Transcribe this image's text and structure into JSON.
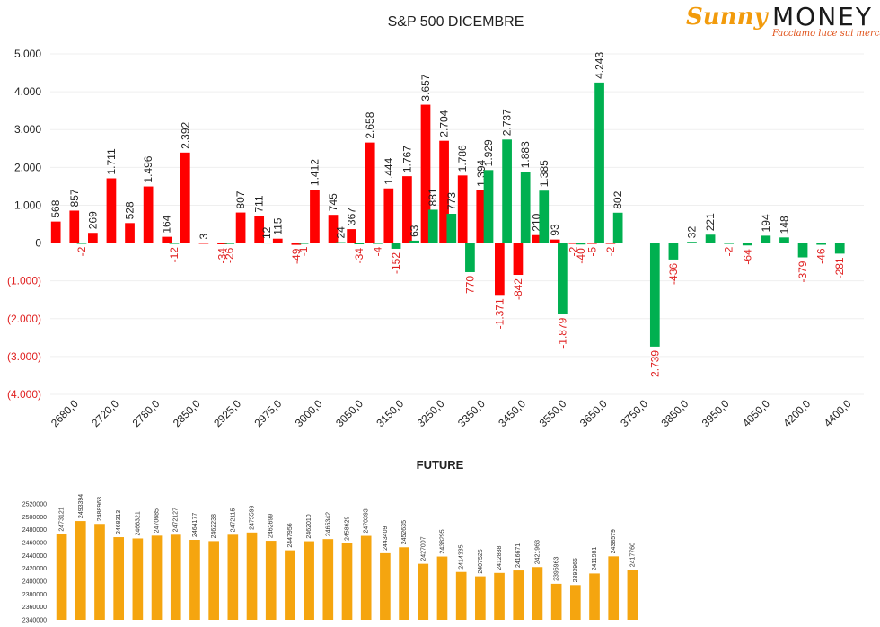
{
  "logo": {
    "brand_left": "Sunny",
    "brand_right": "MONEY",
    "tagline": "Facciamo luce sui mercati"
  },
  "chart_data": [
    {
      "type": "bar",
      "title": "S&P 500 DICEMBRE",
      "ylim": [
        -4000,
        5000
      ],
      "y_ticks": [
        "5.000",
        "4.000",
        "3.000",
        "2.000",
        "1.000",
        "0",
        "(1.000)",
        "(2.000)",
        "(3.000)",
        "(4.000)"
      ],
      "x_tick_labels": [
        "2680,0",
        "2720,0",
        "2780,0",
        "2850,0",
        "2925,0",
        "2975,0",
        "3000,0",
        "3050,0",
        "3150,0",
        "3250,0",
        "3350,0",
        "3450,0",
        "3550,0",
        "3650,0",
        "3750,0",
        "3850,0",
        "3950,0",
        "4050,0",
        "4200,0",
        "4400,0"
      ],
      "colors": {
        "red": "#ff0000",
        "green": "#00b050",
        "positive_label": "#222222",
        "negative_label": "#e02020"
      },
      "series": [
        {
          "name": "red",
          "values": [
            568,
            857,
            269,
            1711,
            528,
            1496,
            164,
            2392,
            3,
            -34,
            807,
            711,
            115,
            -49,
            1412,
            745,
            367,
            2658,
            1444,
            1767,
            3657,
            2704,
            1786,
            1394,
            -1371,
            -842,
            210,
            93,
            -2,
            -5,
            -2,
            null,
            null,
            null,
            null,
            null,
            null,
            null,
            null,
            null,
            null,
            null,
            null,
            null
          ]
        },
        {
          "name": "green",
          "values": [
            null,
            -2,
            null,
            null,
            null,
            null,
            -12,
            null,
            null,
            -26,
            null,
            12,
            null,
            -1,
            null,
            24,
            -34,
            -4,
            -152,
            63,
            881,
            773,
            -770,
            1929,
            2737,
            1883,
            1385,
            -1879,
            -40,
            4243,
            802,
            null,
            -2739,
            -436,
            32,
            221,
            -2,
            -64,
            194,
            148,
            -379,
            -46,
            -281,
            null
          ]
        }
      ],
      "slots": 44
    },
    {
      "type": "bar",
      "title": "FUTURE",
      "ylim": [
        2340000,
        2520000
      ],
      "y_ticks": [
        "2520000",
        "2500000",
        "2480000",
        "2460000",
        "2440000",
        "2420000",
        "2400000",
        "2380000",
        "2360000",
        "2340000"
      ],
      "colors": {
        "bar": "#f5a50f"
      },
      "values": [
        2473121,
        2493394,
        2488963,
        2468313,
        2466321,
        2470685,
        2472127,
        2464177,
        2462238,
        2472115,
        2475599,
        2462699,
        2447956,
        2462010,
        2465342,
        2458629,
        2470393,
        2443409,
        2452635,
        2427007,
        2438295,
        2414335,
        2407525,
        2412838,
        2416671,
        2421963,
        2395963,
        2393965,
        2411981,
        2438579,
        2417760
      ]
    }
  ]
}
